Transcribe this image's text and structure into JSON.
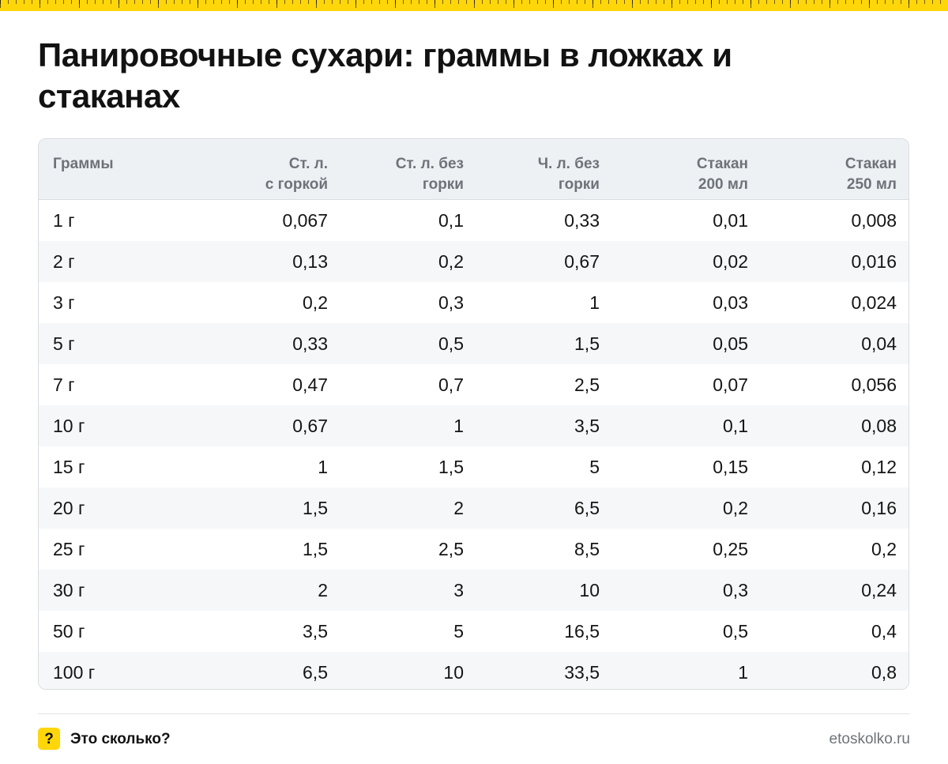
{
  "title": "Панировочные сухари: граммы в ложках и стаканах",
  "colors": {
    "accent": "#ffd60a",
    "header_bg": "#eef1f4",
    "alt_row_bg": "#f5f7f9",
    "header_text": "#6e7379"
  },
  "table": {
    "headers": [
      "Граммы",
      "Ст. л.\nс горкой",
      "Ст. л. без\nгорки",
      "Ч. л. без\nгорки",
      "Стакан\n200 мл",
      "Стакан\n250 мл"
    ],
    "rows": [
      [
        "1 г",
        "0,067",
        "0,1",
        "0,33",
        "0,01",
        "0,008"
      ],
      [
        "2 г",
        "0,13",
        "0,2",
        "0,67",
        "0,02",
        "0,016"
      ],
      [
        "3 г",
        "0,2",
        "0,3",
        "1",
        "0,03",
        "0,024"
      ],
      [
        "5 г",
        "0,33",
        "0,5",
        "1,5",
        "0,05",
        "0,04"
      ],
      [
        "7 г",
        "0,47",
        "0,7",
        "2,5",
        "0,07",
        "0,056"
      ],
      [
        "10 г",
        "0,67",
        "1",
        "3,5",
        "0,1",
        "0,08"
      ],
      [
        "15 г",
        "1",
        "1,5",
        "5",
        "0,15",
        "0,12"
      ],
      [
        "20 г",
        "1,5",
        "2",
        "6,5",
        "0,2",
        "0,16"
      ],
      [
        "25 г",
        "1,5",
        "2,5",
        "8,5",
        "0,25",
        "0,2"
      ],
      [
        "30 г",
        "2",
        "3",
        "10",
        "0,3",
        "0,24"
      ],
      [
        "50 г",
        "3,5",
        "5",
        "16,5",
        "0,5",
        "0,4"
      ],
      [
        "100 г",
        "6,5",
        "10",
        "33,5",
        "1",
        "0,8"
      ]
    ]
  },
  "footer": {
    "badge": "?",
    "brand": "Это сколько?",
    "site": "etoskolko.ru"
  }
}
